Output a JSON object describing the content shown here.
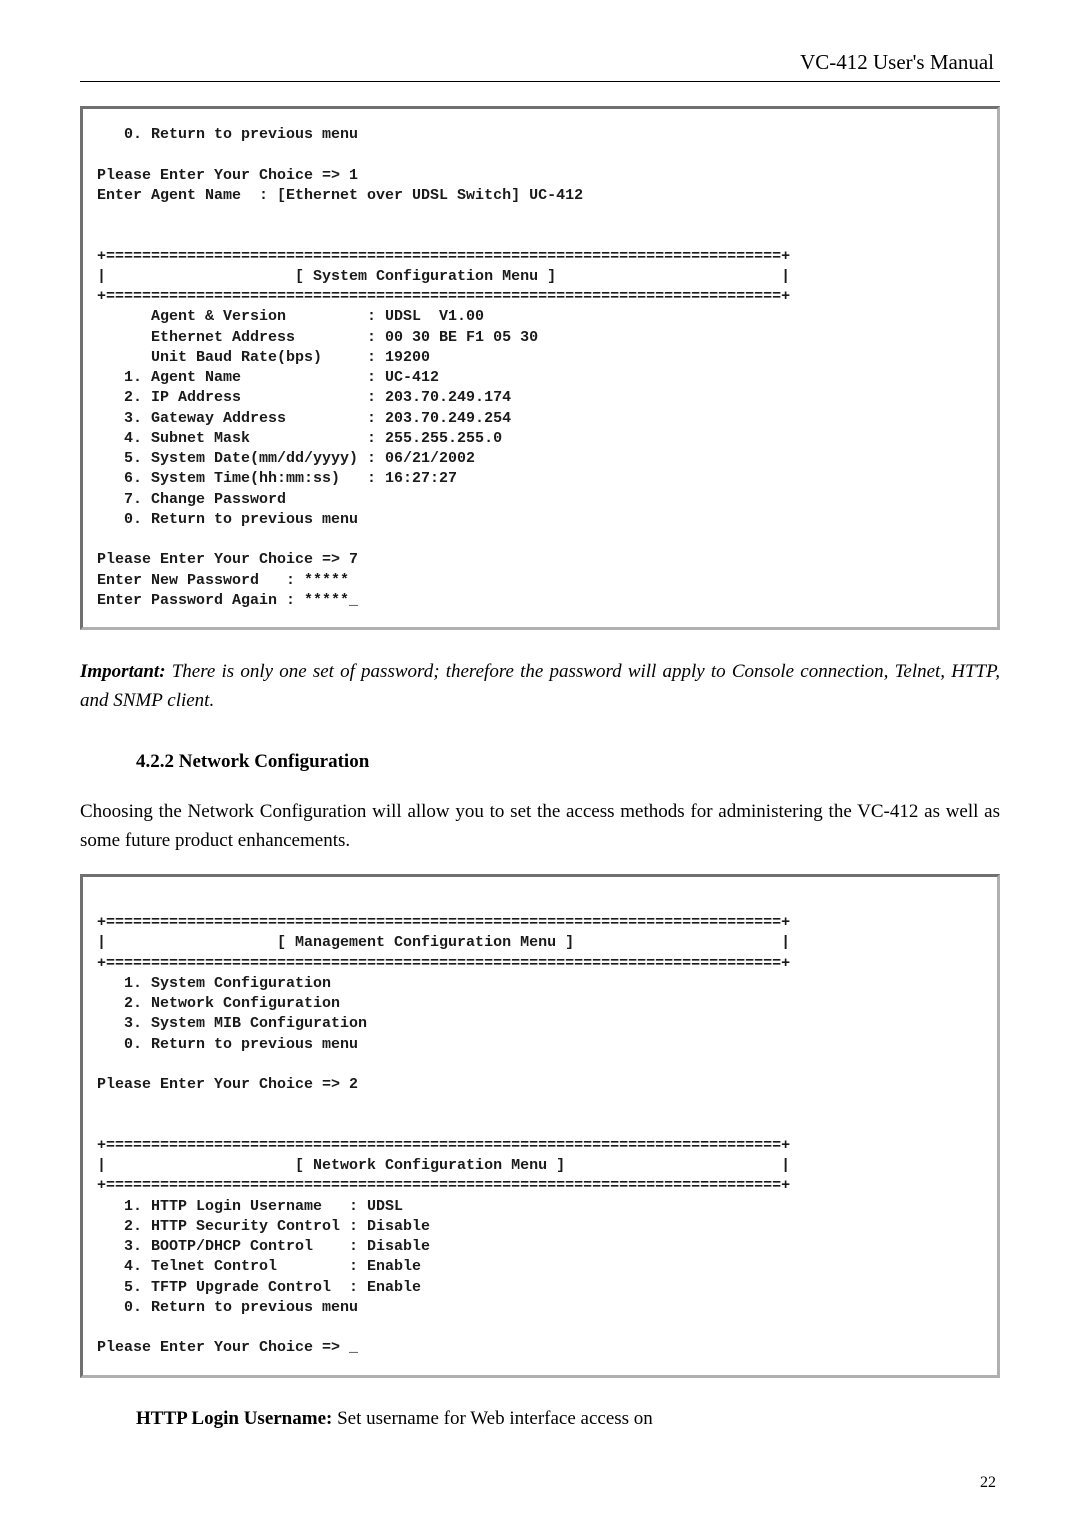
{
  "header": "VC-412  User's  Manual",
  "terminal1": {
    "lines": [
      "   0. Return to previous menu",
      "",
      "Please Enter Your Choice => 1",
      "Enter Agent Name  : [Ethernet over UDSL Switch] UC-412",
      "",
      "",
      "+===========================================================================+",
      "|                     [ System Configuration Menu ]                         |",
      "+===========================================================================+",
      "      Agent & Version         : UDSL  V1.00",
      "      Ethernet Address        : 00 30 BE F1 05 30",
      "      Unit Baud Rate(bps)     : 19200",
      "   1. Agent Name              : UC-412",
      "   2. IP Address              : 203.70.249.174",
      "   3. Gateway Address         : 203.70.249.254",
      "   4. Subnet Mask             : 255.255.255.0",
      "   5. System Date(mm/dd/yyyy) : 06/21/2002",
      "   6. System Time(hh:mm:ss)   : 16:27:27",
      "   7. Change Password",
      "   0. Return to previous menu",
      "",
      "Please Enter Your Choice => 7",
      "Enter New Password   : *****",
      "Enter Password Again : *****_"
    ]
  },
  "important": {
    "label": "Important:",
    "text": "  There  is  only  one  set  of  password;  therefore  the  password  will  apply  to Console connection, Telnet, HTTP, and SNMP client."
  },
  "section422": "4.2.2 Network Configuration",
  "para1": "Choosing  the  Network  Configuration  will  allow  you  to  set  the  access  methods  for administering the VC-412 as well as some future product enhancements.",
  "terminal2": {
    "lines": [
      "",
      "+===========================================================================+",
      "|                   [ Management Configuration Menu ]                       |",
      "+===========================================================================+",
      "   1. System Configuration",
      "   2. Network Configuration",
      "   3. System MIB Configuration",
      "   0. Return to previous menu",
      "",
      "Please Enter Your Choice => 2",
      "",
      "",
      "+===========================================================================+",
      "|                     [ Network Configuration Menu ]                        |",
      "+===========================================================================+",
      "   1. HTTP Login Username   : UDSL",
      "   2. HTTP Security Control : Disable",
      "   3. BOOTP/DHCP Control    : Disable",
      "   4. Telnet Control        : Enable",
      "   5. TFTP Upgrade Control  : Enable",
      "   0. Return to previous menu",
      "",
      "Please Enter Your Choice => _"
    ]
  },
  "httpLogin": {
    "label": "HTTP Login Username:",
    "text": " Set username for Web interface access on"
  },
  "pageNumber": "22"
}
